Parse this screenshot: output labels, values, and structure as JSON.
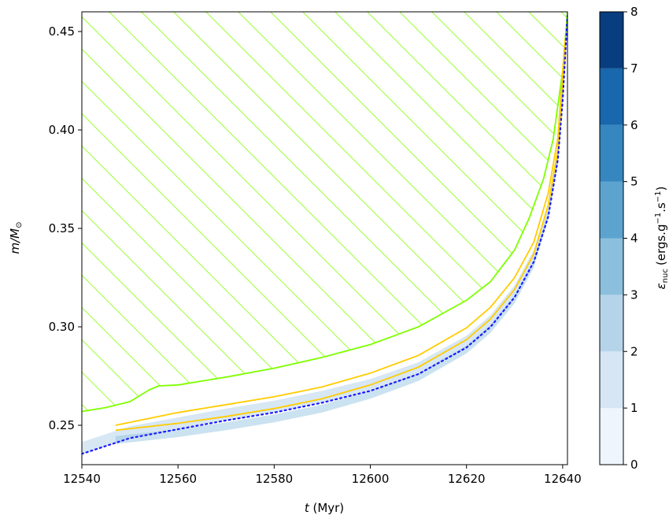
{
  "chart_data": {
    "type": "area",
    "xlabel_var": "t",
    "xlabel_unit": " (Myr)",
    "ylabel_var": "m/M",
    "ylabel_sub": "⊙",
    "xlim": [
      12540,
      12641
    ],
    "ylim": [
      0.23,
      0.46
    ],
    "xticks": [
      12540,
      12560,
      12580,
      12600,
      12620,
      12640
    ],
    "xtick_labels": [
      "12540",
      "12560",
      "12580",
      "12600",
      "12620",
      "12640"
    ],
    "yticks": [
      0.25,
      0.3,
      0.35,
      0.4,
      0.45
    ],
    "ytick_labels": [
      "0.25",
      "0.30",
      "0.35",
      "0.40",
      "0.45"
    ],
    "grid": false,
    "convective_zone": {
      "color": "#7fff00",
      "hatch": "diagonal",
      "lower_boundary": {
        "x": [
          12540,
          12545,
          12550,
          12552,
          12554,
          12556,
          12560,
          12570,
          12580,
          12590,
          12600,
          12610,
          12620,
          12625,
          12630,
          12633,
          12636,
          12638,
          12640,
          12641
        ],
        "y": [
          0.257,
          0.259,
          0.262,
          0.265,
          0.268,
          0.27,
          0.2705,
          0.2745,
          0.279,
          0.2845,
          0.291,
          0.3,
          0.3135,
          0.323,
          0.339,
          0.355,
          0.375,
          0.395,
          0.43,
          0.46
        ]
      },
      "upper_boundary": 0.46
    },
    "burning_shell": {
      "color": "#ffcc00",
      "lower": {
        "x": [
          12547,
          12560,
          12570,
          12580,
          12590,
          12600,
          12610,
          12620,
          12625,
          12630,
          12634,
          12637,
          12639,
          12640.5
        ],
        "y": [
          0.2475,
          0.251,
          0.2545,
          0.2585,
          0.2635,
          0.2705,
          0.2795,
          0.2935,
          0.304,
          0.319,
          0.337,
          0.362,
          0.39,
          0.44
        ]
      },
      "upper": {
        "x": [
          12547,
          12560,
          12570,
          12580,
          12590,
          12600,
          12610,
          12620,
          12625,
          12630,
          12634,
          12637,
          12639,
          12640.5
        ],
        "y": [
          0.25,
          0.2565,
          0.2605,
          0.2645,
          0.2695,
          0.2765,
          0.2855,
          0.2995,
          0.31,
          0.325,
          0.343,
          0.368,
          0.396,
          0.446
        ]
      }
    },
    "core_boundary": {
      "color": "#1a1aff",
      "style": "dotted",
      "x": [
        12540,
        12550,
        12560,
        12570,
        12580,
        12590,
        12600,
        12610,
        12620,
        12625,
        12630,
        12634,
        12637,
        12639,
        12640,
        12641
      ],
      "y": [
        0.2355,
        0.2435,
        0.248,
        0.2525,
        0.2565,
        0.2615,
        0.2675,
        0.276,
        0.2895,
        0.3,
        0.315,
        0.333,
        0.356,
        0.385,
        0.415,
        0.458
      ]
    },
    "colorbar": {
      "label_var": "ε",
      "label_sub": "nuc",
      "label_unit": "(ergs.g",
      "label_exp1": "−1",
      "label_mid": ".s",
      "label_exp2": "−1",
      "label_close": ")",
      "range": [
        0,
        8
      ],
      "levels": [
        0,
        1,
        2,
        3,
        4,
        5,
        6,
        7,
        8
      ],
      "tick_labels": [
        "0",
        "1",
        "2",
        "3",
        "4",
        "5",
        "6",
        "7",
        "8"
      ],
      "colors": [
        "#eef5fc",
        "#d6e6f4",
        "#b6d4e9",
        "#8bbfdd",
        "#5ca3d0",
        "#3686c0",
        "#1967ad",
        "#083d7f"
      ]
    }
  }
}
